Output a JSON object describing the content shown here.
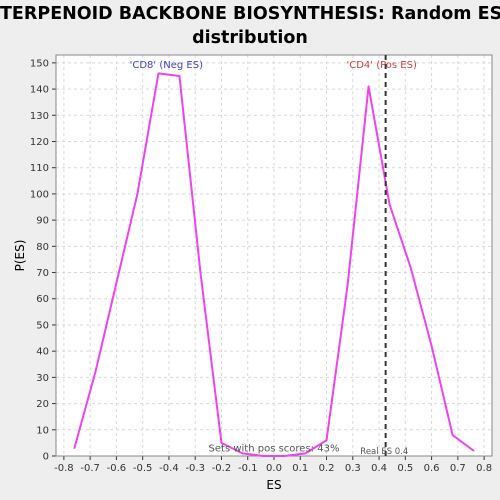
{
  "chart_data": {
    "type": "line",
    "title_lines": [
      "TERPENOID BACKBONE BIOSYNTHESIS: Random ES",
      "distribution"
    ],
    "xlabel": "ES",
    "ylabel": "P(ES)",
    "xlim": [
      -0.83,
      0.83
    ],
    "ylim": [
      0,
      153
    ],
    "x_ticks": [
      -0.8,
      -0.7,
      -0.6,
      -0.5,
      -0.4,
      -0.3,
      -0.2,
      -0.1,
      0.0,
      0.1,
      0.2,
      0.3,
      0.4,
      0.5,
      0.6,
      0.7,
      0.8
    ],
    "x_tick_labels": [
      "-0.8",
      "-0.7",
      "-0.6",
      "-0.5",
      "-0.4",
      "-0.3",
      "-0.2",
      "-0.1",
      "0.0",
      "0.1",
      "0.2",
      "0.3",
      "0.4",
      "0.5",
      "0.6",
      "0.7",
      "0.8"
    ],
    "y_ticks": [
      0,
      10,
      20,
      30,
      40,
      50,
      60,
      70,
      80,
      90,
      100,
      110,
      120,
      130,
      140,
      150
    ],
    "y_tick_labels": [
      "0",
      "10",
      "20",
      "30",
      "40",
      "50",
      "60",
      "70",
      "80",
      "90",
      "100",
      "110",
      "120",
      "130",
      "140",
      "150"
    ],
    "grid": true,
    "series": [
      {
        "color": "#ee44ee",
        "x": [
          -0.76,
          -0.68,
          -0.6,
          -0.52,
          -0.44,
          -0.36,
          -0.28,
          -0.2,
          -0.12,
          -0.04,
          0.04,
          0.12,
          0.2,
          0.28,
          0.36,
          0.44,
          0.52,
          0.6,
          0.68,
          0.76
        ],
        "y": [
          3,
          32,
          66,
          100,
          146,
          145,
          70,
          5,
          1,
          0,
          0,
          1,
          6,
          65,
          141,
          96,
          72,
          42,
          8,
          2
        ]
      }
    ],
    "annotations": [
      {
        "text": "'CD8' (Neg ES)",
        "x": -0.41,
        "y": 148,
        "color": "#4040cc"
      },
      {
        "text": "'CD4' (Pos ES)",
        "x": 0.41,
        "y": 148,
        "color": "#cc4040"
      },
      {
        "text": "Sets with pos scores: 43%",
        "x": 0.0,
        "y": 1,
        "color": "#555555"
      },
      {
        "text": "Real ES 0.4",
        "x": 0.42,
        "y": 0,
        "color": "#555555"
      }
    ],
    "reference_line": {
      "x": 0.425,
      "style": "dashed",
      "color": "#333333"
    }
  }
}
